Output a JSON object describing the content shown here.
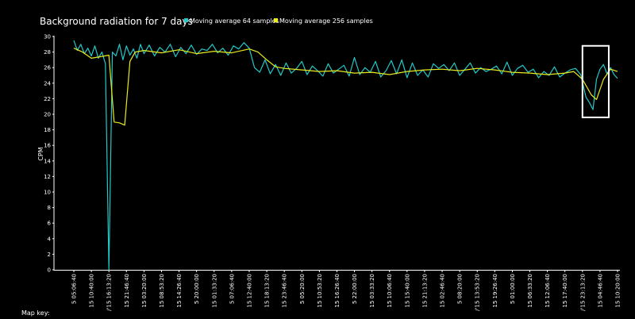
{
  "footer": {
    "map_key_label": "Map key:"
  },
  "chart_data": {
    "type": "line",
    "title": "Background radiation for 7 days",
    "xlabel": "",
    "ylabel": "CPM",
    "ylim": [
      0,
      30
    ],
    "yticks": [
      0,
      2,
      4,
      6,
      8,
      10,
      12,
      14,
      16,
      18,
      20,
      22,
      24,
      26,
      28,
      30
    ],
    "grid": false,
    "legend_position": "top",
    "x_tick_labels": [
      "5 05:06:40",
      "15 10:40:00",
      "/'15 16:13:20",
      "15 21:46:40",
      "15 03:20:00",
      "15 08:53:20",
      "15 14:26:40",
      "5 20:00:00",
      "15 01:33:20",
      "5 07:06:40",
      "15 12:40:00",
      "15 18:13:20",
      "15 23:46:40",
      "5 05:20:00",
      "15 10:53:20",
      "15 16:26:40",
      "5 22:00:00",
      "15 03:33:20",
      "15 10:06:40",
      "15 15:40:00",
      "15 21:13:20",
      "15 02:46:40",
      "5 08:20:00",
      "/'15 13:53:20",
      "15 19:26:40",
      "5 01:00:00",
      "15 06:33:20",
      "15 12:06:40",
      "15 17:40:00",
      "/'15 23:13:20",
      "15 04:46:40",
      "15 10:20:00"
    ],
    "highlight_box": {
      "x_start": 29.0,
      "x_end": 30.5,
      "y_start": 19.6,
      "y_end": 28.8
    },
    "series": [
      {
        "name": "Moving average 64 samples",
        "color": "#23c8c8",
        "x": [
          0,
          0.2,
          0.4,
          0.6,
          0.8,
          1,
          1.2,
          1.4,
          1.6,
          1.8,
          2,
          2.2,
          2.4,
          2.6,
          2.8,
          3,
          3.2,
          3.4,
          3.6,
          3.8,
          4,
          4.3,
          4.6,
          4.9,
          5.2,
          5.5,
          5.8,
          6.1,
          6.4,
          6.7,
          7,
          7.3,
          7.6,
          7.9,
          8.2,
          8.5,
          8.8,
          9.1,
          9.4,
          9.7,
          10,
          10.3,
          10.6,
          10.9,
          11.2,
          11.5,
          11.8,
          12.1,
          12.4,
          12.7,
          13,
          13.3,
          13.6,
          13.9,
          14.2,
          14.5,
          14.8,
          15.1,
          15.4,
          15.7,
          16,
          16.3,
          16.6,
          16.9,
          17.2,
          17.5,
          17.8,
          18.1,
          18.4,
          18.7,
          19,
          19.3,
          19.6,
          19.9,
          20.2,
          20.5,
          20.8,
          21.1,
          21.4,
          21.7,
          22,
          22.3,
          22.6,
          22.9,
          23.2,
          23.5,
          23.8,
          24.1,
          24.4,
          24.7,
          25,
          25.3,
          25.6,
          25.9,
          26.2,
          26.5,
          26.8,
          27.1,
          27.4,
          27.7,
          28,
          28.3,
          28.6,
          28.9,
          29.2,
          29.4,
          29.6,
          29.8,
          30,
          30.2,
          30.4,
          30.6,
          30.8,
          31
        ],
        "values": [
          29.5,
          28.2,
          29.0,
          27.8,
          28.5,
          27.5,
          28.8,
          27.2,
          28.0,
          26.5,
          0,
          28.0,
          27.5,
          29.0,
          27.0,
          28.8,
          27.6,
          28.4,
          27.2,
          29.0,
          27.8,
          28.9,
          27.5,
          28.6,
          28.0,
          29.0,
          27.4,
          28.6,
          27.8,
          28.9,
          27.7,
          28.4,
          28.2,
          29.0,
          27.9,
          28.5,
          27.6,
          28.8,
          28.4,
          29.2,
          28.5,
          26.0,
          25.4,
          27.0,
          25.2,
          26.4,
          25.0,
          26.6,
          25.3,
          25.9,
          26.8,
          25.1,
          26.2,
          25.6,
          24.9,
          26.5,
          25.3,
          25.8,
          26.3,
          24.9,
          27.3,
          25.1,
          26.0,
          25.4,
          26.8,
          24.8,
          25.6,
          26.9,
          25.2,
          27.0,
          24.7,
          26.6,
          25.0,
          25.7,
          24.8,
          26.5,
          25.9,
          26.4,
          25.6,
          26.6,
          25.0,
          25.8,
          26.6,
          25.3,
          26.0,
          25.5,
          25.8,
          26.2,
          25.2,
          26.7,
          25.0,
          25.9,
          26.3,
          25.4,
          25.8,
          24.7,
          25.5,
          25.0,
          26.1,
          24.8,
          25.3,
          25.7,
          25.9,
          25.1,
          22.2,
          21.5,
          20.6,
          24.5,
          25.8,
          26.4,
          25.2,
          26.0,
          25.1,
          24.6
        ]
      },
      {
        "name": "Moving average 256 samples",
        "color": "#eaea1e",
        "x": [
          0,
          0.5,
          1,
          1.5,
          2,
          2.3,
          2.6,
          2.9,
          3.2,
          3.5,
          4,
          5,
          6,
          7,
          8,
          9,
          10,
          10.5,
          11,
          11.5,
          12,
          13,
          14,
          15,
          16,
          17,
          18,
          19,
          20,
          21,
          22,
          23,
          24,
          25,
          26,
          27,
          28,
          28.5,
          29,
          29.5,
          29.8,
          30.2,
          30.6,
          31
        ],
        "values": [
          28.5,
          28.0,
          27.2,
          27.4,
          27.6,
          19.0,
          18.9,
          18.6,
          26.8,
          28.0,
          28.2,
          27.9,
          28.3,
          27.8,
          28.1,
          27.9,
          28.4,
          28.0,
          27.0,
          26.1,
          25.9,
          25.7,
          25.5,
          25.6,
          25.3,
          25.4,
          25.1,
          25.5,
          25.7,
          25.8,
          25.6,
          25.9,
          25.7,
          25.4,
          25.3,
          25.1,
          25.3,
          25.5,
          24.5,
          22.5,
          21.9,
          24.5,
          25.8,
          25.5
        ]
      }
    ]
  }
}
